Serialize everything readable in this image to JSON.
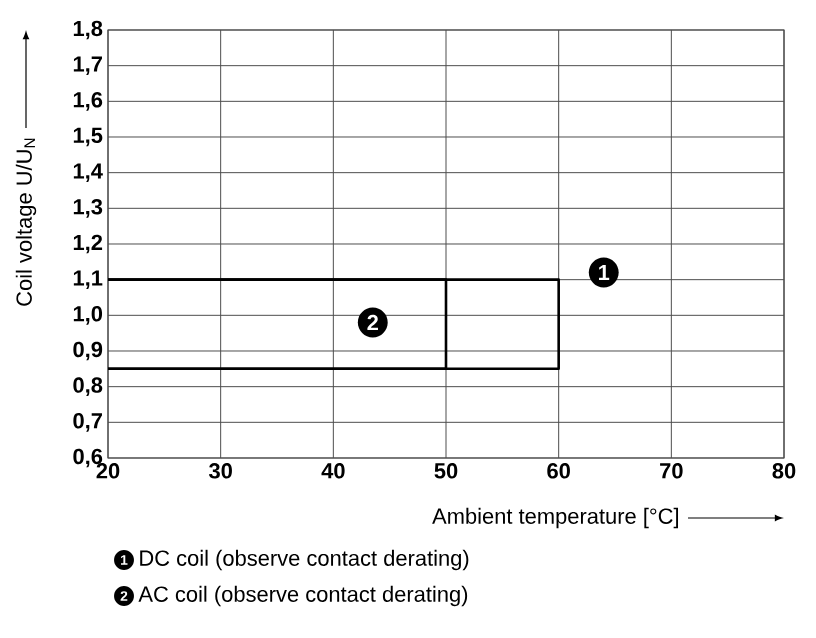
{
  "chart_data": {
    "type": "line",
    "xlabel": "Ambient temperature [°C]",
    "ylabel": "Coil voltage U/U$_{N}$",
    "xlim": [
      20,
      80
    ],
    "ylim": [
      0.6,
      1.8
    ],
    "xticks": [
      20,
      30,
      40,
      50,
      60,
      70,
      80
    ],
    "yticks": [
      {
        "value": 0.6,
        "label": "0,6"
      },
      {
        "value": 0.7,
        "label": "0,7"
      },
      {
        "value": 0.8,
        "label": "0,8"
      },
      {
        "value": 0.9,
        "label": "0,9"
      },
      {
        "value": 1.0,
        "label": "1,0"
      },
      {
        "value": 1.1,
        "label": "1,1"
      },
      {
        "value": 1.2,
        "label": "1,2"
      },
      {
        "value": 1.3,
        "label": "1,3"
      },
      {
        "value": 1.4,
        "label": "1,4"
      },
      {
        "value": 1.5,
        "label": "1,5"
      },
      {
        "value": 1.6,
        "label": "1,6"
      },
      {
        "value": 1.7,
        "label": "1,7"
      },
      {
        "value": 1.8,
        "label": "1,8"
      }
    ],
    "grid": true,
    "legend": "bottom",
    "marker": "none",
    "line_style": "solid",
    "series": [
      {
        "name": "DC coil (observe contact derating)",
        "color": "#000000",
        "x": [
          20,
          60,
          60,
          20
        ],
        "values": [
          1.1,
          1.1,
          0.85,
          0.85
        ]
      },
      {
        "name": "AC coil (observe contact derating)",
        "color": "#000000",
        "x": [
          20,
          50,
          50,
          20
        ],
        "values": [
          1.1,
          1.1,
          0.85,
          0.85
        ]
      }
    ],
    "annotations": [
      {
        "text": "1",
        "x": 64,
        "y": 1.12
      },
      {
        "text": "2",
        "x": 43.5,
        "y": 0.98
      }
    ]
  }
}
